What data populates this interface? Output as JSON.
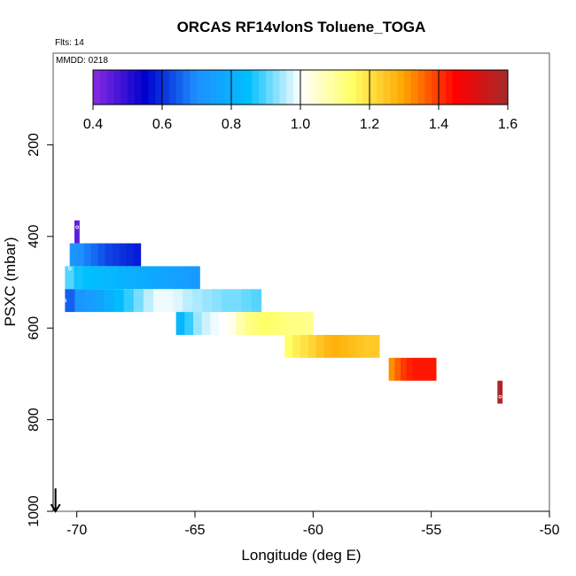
{
  "chart_data": {
    "type": "heatmap",
    "title": "ORCAS RF14vlonS Toluene_TOGA",
    "annotations": {
      "flights": "Flts: 14",
      "date": "MMDD: 0218"
    },
    "xlabel": "Longitude (deg E)",
    "ylabel": "PSXC (mbar)",
    "xlim": [
      -71,
      -50
    ],
    "ylim": [
      1000,
      0
    ],
    "x_ticks": [
      -70,
      -65,
      -60,
      -55,
      -50
    ],
    "x_tick_labels": [
      "-70",
      "-65",
      "-60",
      "-55",
      "-50"
    ],
    "y_ticks": [
      200,
      400,
      600,
      800,
      1000
    ],
    "y_tick_labels": [
      "200",
      "400",
      "600",
      "800",
      "1000"
    ],
    "colorbar": {
      "range": [
        0.4,
        1.6
      ],
      "ticks": [
        0.4,
        0.6,
        0.8,
        1.0,
        1.2,
        1.4,
        1.6
      ],
      "tick_labels": [
        "0.4",
        "0.6",
        "0.8",
        "1.0",
        "1.2",
        "1.4",
        "1.6"
      ]
    },
    "bands": [
      {
        "p_top": 365,
        "p_bot": 415,
        "lon_start": -70.1,
        "lon_end": -69.9,
        "values": [
          0.45
        ]
      },
      {
        "p_top": 415,
        "p_bot": 465,
        "lon_start": -70.3,
        "lon_end": -67.3,
        "values": [
          0.72,
          0.7,
          0.68,
          0.66,
          0.64,
          0.62,
          0.61,
          0.6,
          0.59,
          0.58
        ]
      },
      {
        "p_top": 465,
        "p_bot": 515,
        "lon_start": -70.5,
        "lon_end": -64.8,
        "values": [
          0.9,
          0.86,
          0.85,
          0.84,
          0.83,
          0.82,
          0.81,
          0.8,
          0.79,
          0.78,
          0.77,
          0.76,
          0.75,
          0.74,
          0.73
        ]
      },
      {
        "p_top": 515,
        "p_bot": 565,
        "lon_start": -70.5,
        "lon_end": -62.2,
        "values": [
          0.65,
          0.72,
          0.74,
          0.76,
          0.8,
          0.84,
          0.88,
          0.92,
          0.96,
          0.99,
          0.99,
          0.98,
          0.96,
          0.95,
          0.94,
          0.93,
          0.92,
          0.92,
          0.91,
          0.9
        ]
      },
      {
        "p_top": 565,
        "p_bot": 615,
        "lon_start": -65.8,
        "lon_end": -60.0,
        "values": [
          0.82,
          0.88,
          0.94,
          0.97,
          0.99,
          1.0,
          1.02,
          1.08,
          1.12,
          1.14,
          1.15,
          1.14,
          1.13,
          1.12,
          1.12,
          1.11
        ]
      },
      {
        "p_top": 615,
        "p_bot": 665,
        "lon_start": -61.2,
        "lon_end": -57.2,
        "values": [
          1.15,
          1.18,
          1.2,
          1.22,
          1.25,
          1.27,
          1.28,
          1.27,
          1.26,
          1.25,
          1.24,
          1.24
        ]
      },
      {
        "p_top": 665,
        "p_bot": 715,
        "lon_start": -56.8,
        "lon_end": -54.8,
        "values": [
          1.32,
          1.36,
          1.4,
          1.42,
          1.43,
          1.43,
          1.43,
          1.43
        ]
      },
      {
        "p_top": 715,
        "p_bot": 765,
        "lon_start": -52.2,
        "lon_end": -52.0,
        "values": [
          1.58
        ]
      }
    ],
    "markers": [
      {
        "lon": -69.98,
        "p": 380
      },
      {
        "lon": -70.3,
        "p": 470
      },
      {
        "lon": -70.5,
        "p": 540
      },
      {
        "lon": -52.08,
        "p": 750
      }
    ],
    "arrow": {
      "lon": -70.9,
      "p_from": 950,
      "p_to": 1000
    },
    "colors": {
      "scale": [
        "#8a2be2",
        "#0000cd",
        "#1e90ff",
        "#00bfff",
        "#ffffff",
        "#ffff66",
        "#ffa500",
        "#ff0000",
        "#a52a2a"
      ]
    }
  }
}
